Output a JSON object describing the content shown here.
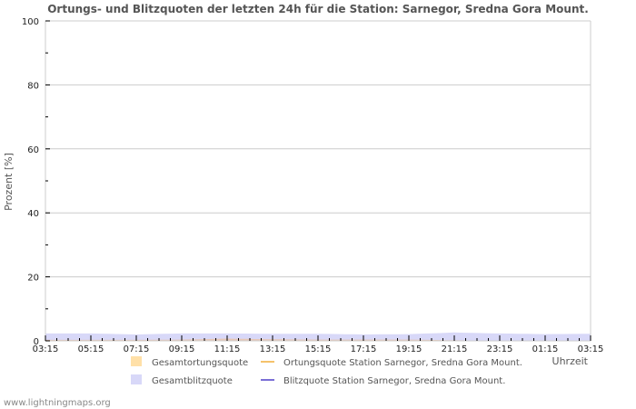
{
  "chart_data": {
    "type": "area",
    "title": "Ortungs- und Blitzquoten der letzten 24h für die Station: Sarnegor, Sredna Gora Mount.",
    "xlabel": "Uhrzeit",
    "ylabel": "Prozent   [%]",
    "ylim": [
      0,
      100
    ],
    "yticks": [
      0,
      20,
      40,
      60,
      80,
      100
    ],
    "grid": true,
    "x": [
      "03:15",
      "05:15",
      "07:15",
      "09:15",
      "11:15",
      "13:15",
      "15:15",
      "17:15",
      "19:15",
      "21:15",
      "23:15",
      "01:15",
      "03:15"
    ],
    "series": [
      {
        "name": "Gesamtortungsquote",
        "kind": "area",
        "color": "#ffe0a8",
        "values": [
          0.3,
          0.3,
          0.3,
          0.4,
          0.7,
          0.5,
          0.4,
          0.4,
          0.4,
          0.2,
          0.0,
          0.0,
          0.0
        ]
      },
      {
        "name": "Gesamtblitzquote",
        "kind": "area",
        "color": "#d8d8f8",
        "values": [
          2.3,
          2.3,
          2.0,
          2.3,
          2.3,
          2.2,
          2.2,
          2.0,
          2.1,
          2.6,
          2.3,
          2.1,
          2.2
        ]
      },
      {
        "name": "Ortungsquote Station Sarnegor, Sredna Gora Mount.",
        "kind": "line",
        "color": "#f5c26b",
        "values": [
          0,
          0,
          0,
          0,
          0,
          0,
          0,
          0,
          0,
          0,
          0,
          0,
          0
        ]
      },
      {
        "name": "Blitzquote Station Sarnegor, Sredna Gora Mount.",
        "kind": "line",
        "color": "#7b6fd6",
        "values": [
          0,
          0,
          0,
          0,
          0,
          0,
          0,
          0,
          0,
          0,
          0,
          0,
          0
        ]
      }
    ],
    "legend_position": "bottom"
  },
  "footer": "www.lightningmaps.org"
}
